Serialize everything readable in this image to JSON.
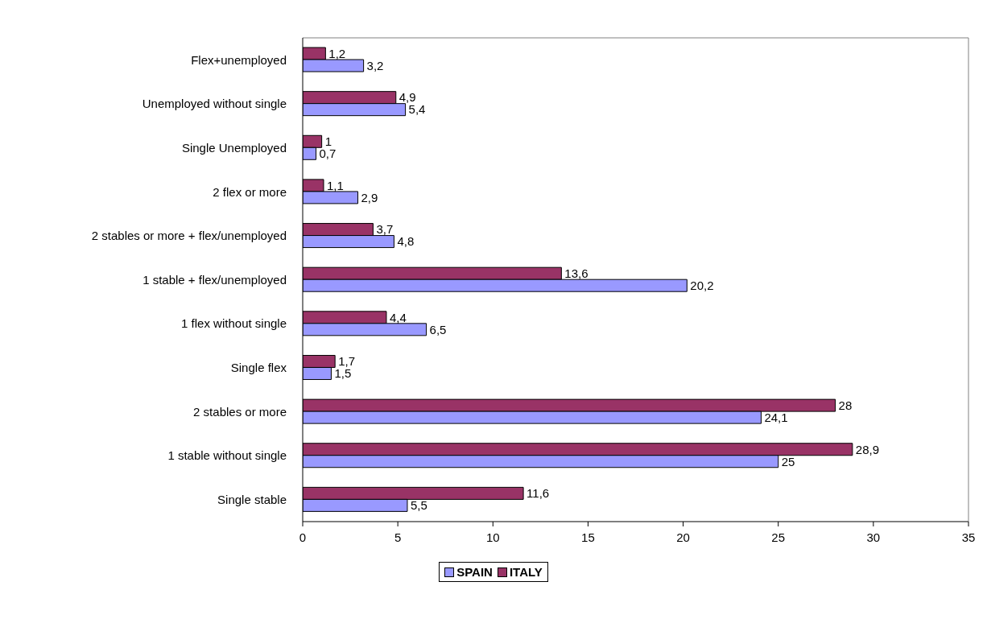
{
  "chart_data": {
    "type": "bar",
    "orientation": "horizontal",
    "categories": [
      "Flex+unemployed",
      "Unemployed without single",
      "Single Unemployed",
      "2 flex or more",
      "2 stables or more + flex/unemployed",
      "1 stable + flex/unemployed",
      "1 flex without single",
      "Single flex",
      "2 stables or more",
      "1 stable without single",
      "Single stable"
    ],
    "series": [
      {
        "name": "SPAIN",
        "color": "#9999ff",
        "values": [
          3.2,
          5.4,
          0.7,
          2.9,
          4.8,
          20.2,
          6.5,
          1.5,
          24.1,
          25,
          5.5
        ],
        "value_labels": [
          "3,2",
          "5,4",
          "0,7",
          "2,9",
          "4,8",
          "20,2",
          "6,5",
          "1,5",
          "24,1",
          "25",
          "5,5"
        ]
      },
      {
        "name": "ITALY",
        "color": "#993366",
        "values": [
          1.2,
          4.9,
          1,
          1.1,
          3.7,
          13.6,
          4.4,
          1.7,
          28,
          28.9,
          11.6
        ],
        "value_labels": [
          "1,2",
          "4,9",
          "1",
          "1,1",
          "3,7",
          "13,6",
          "4,4",
          "1,7",
          "28",
          "28,9",
          "11,6"
        ]
      }
    ],
    "xlim": [
      0,
      35
    ],
    "xticks": [
      0,
      5,
      10,
      15,
      20,
      25,
      30,
      35
    ],
    "legend": "bottom"
  }
}
